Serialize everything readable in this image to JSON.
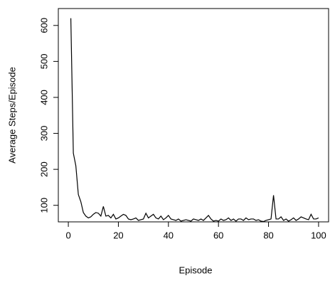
{
  "chart_data": {
    "type": "line",
    "xlabel": "Episode",
    "ylabel": "Average Steps/Episode",
    "x": [
      1,
      2,
      3,
      4,
      5,
      6,
      7,
      8,
      9,
      10,
      11,
      12,
      13,
      14,
      15,
      16,
      17,
      18,
      19,
      20,
      21,
      22,
      23,
      24,
      25,
      26,
      27,
      28,
      29,
      30,
      31,
      32,
      33,
      34,
      35,
      36,
      37,
      38,
      39,
      40,
      41,
      42,
      43,
      44,
      45,
      46,
      47,
      48,
      49,
      50,
      51,
      52,
      53,
      54,
      55,
      56,
      57,
      58,
      59,
      60,
      61,
      62,
      63,
      64,
      65,
      66,
      67,
      68,
      69,
      70,
      71,
      72,
      73,
      74,
      75,
      76,
      77,
      78,
      79,
      80,
      81,
      82,
      83,
      84,
      85,
      86,
      87,
      88,
      89,
      90,
      91,
      92,
      93,
      94,
      95,
      96,
      97,
      98,
      99,
      100
    ],
    "series": [
      {
        "name": "Average Steps/Episode",
        "color": "#000000",
        "values": [
          620,
          245,
          210,
          130,
          110,
          80,
          70,
          65,
          68,
          75,
          80,
          78,
          70,
          97,
          70,
          72,
          65,
          75,
          62,
          65,
          70,
          75,
          72,
          62,
          60,
          62,
          65,
          58,
          60,
          62,
          78,
          65,
          70,
          75,
          65,
          62,
          70,
          60,
          65,
          72,
          62,
          60,
          58,
          62,
          56,
          58,
          60,
          58,
          56,
          62,
          60,
          58,
          62,
          58,
          65,
          72,
          62,
          56,
          58,
          56,
          62,
          58,
          60,
          65,
          58,
          62,
          56,
          62,
          62,
          58,
          65,
          60,
          62,
          62,
          58,
          60,
          56,
          55,
          58,
          60,
          62,
          128,
          62,
          62,
          68,
          58,
          62,
          56,
          60,
          65,
          58,
          62,
          68,
          65,
          62,
          60,
          75,
          62,
          62,
          65
        ]
      }
    ],
    "xlim": [
      -4,
      104
    ],
    "ylim": [
      54,
      647
    ],
    "xticks": [
      0,
      20,
      40,
      60,
      80,
      100
    ],
    "yticks": [
      100,
      200,
      300,
      400,
      500,
      600
    ]
  }
}
